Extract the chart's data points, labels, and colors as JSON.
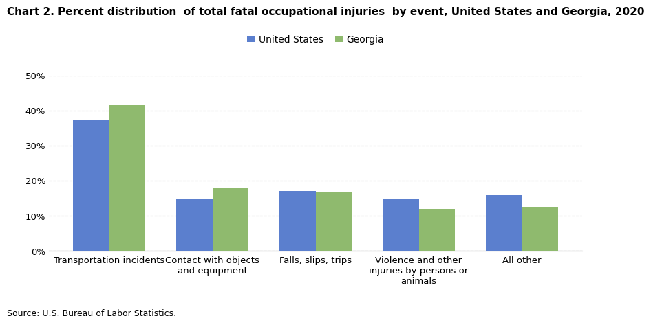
{
  "title": "Chart 2. Percent distribution  of total fatal occupational injuries  by event, United States and Georgia, 2020",
  "categories": [
    "Transportation incidents",
    "Contact with objects\nand equipment",
    "Falls, slips, trips",
    "Violence and other\ninjuries by persons or\nanimals",
    "All other"
  ],
  "us_values": [
    37.5,
    15.0,
    17.0,
    15.0,
    16.0
  ],
  "ga_values": [
    41.5,
    17.8,
    16.7,
    12.0,
    12.5
  ],
  "us_color": "#5b7fce",
  "ga_color": "#8fba6e",
  "us_label": "United States",
  "ga_label": "Georgia",
  "ylim": [
    0,
    50
  ],
  "yticks": [
    0,
    10,
    20,
    30,
    40,
    50
  ],
  "ytick_labels": [
    "0%",
    "10%",
    "20%",
    "30%",
    "40%",
    "50%"
  ],
  "source": "Source: U.S. Bureau of Labor Statistics.",
  "background_color": "#ffffff",
  "grid_color": "#aaaaaa",
  "bar_width": 0.35,
  "title_fontsize": 11,
  "legend_fontsize": 10,
  "tick_fontsize": 9.5,
  "source_fontsize": 9
}
